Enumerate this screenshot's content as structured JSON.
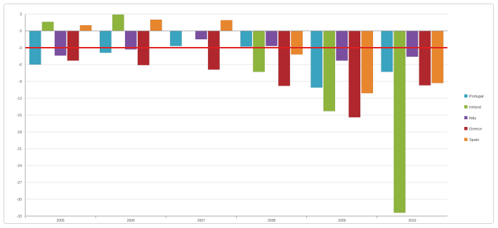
{
  "chart_data": {
    "type": "bar",
    "categories": [
      "2005",
      "2006",
      "2007",
      "2008",
      "2009",
      "2010"
    ],
    "series": [
      {
        "name": "Portugal",
        "color": "#3aa3bf",
        "values": [
          -6,
          -3.9,
          -2.7,
          -2.8,
          -10.1,
          -7.3
        ]
      },
      {
        "name": "Ireland",
        "color": "#8db43c",
        "values": [
          1.6,
          2.9,
          0,
          -7.3,
          -14.3,
          -32.4
        ]
      },
      {
        "name": "Italy",
        "color": "#7b4fa0",
        "values": [
          -4.4,
          -3.3,
          -1.5,
          -2.7,
          -5.3,
          -4.6
        ]
      },
      {
        "name": "Greece",
        "color": "#b0272d",
        "values": [
          -5.3,
          -6.1,
          -6.9,
          -9.8,
          -15.4,
          -9.7
        ]
      },
      {
        "name": "Spain",
        "color": "#e8862e",
        "values": [
          1.0,
          2.0,
          1.9,
          -4.2,
          -11.1,
          -9.3
        ]
      }
    ],
    "y_ticks": [
      "3",
      "0",
      "-3",
      "-6",
      "-9",
      "-12",
      "-15",
      "-18",
      "-21",
      "-24",
      "-27",
      "-30",
      "-33"
    ],
    "ylim": [
      -33,
      3
    ],
    "reference_line": {
      "value": -3,
      "color": "#e02020"
    },
    "grid": true,
    "legend_position": "right"
  }
}
